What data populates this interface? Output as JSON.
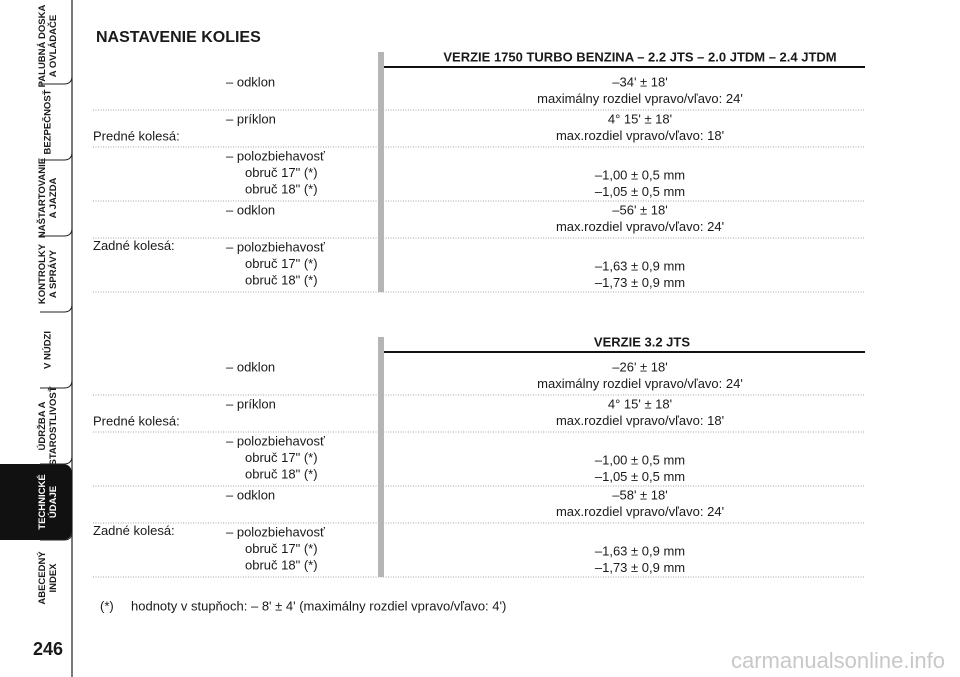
{
  "sidebar": {
    "tabs": [
      {
        "lines": [
          "PALUBNÁ DOSKA",
          "A OVLÁDAČE"
        ]
      },
      {
        "lines": [
          "BEZPEČNOSŤ"
        ]
      },
      {
        "lines": [
          "NAŠTARTOVANIE",
          "A JAZDA"
        ]
      },
      {
        "lines": [
          "KONTROLKY",
          "A SPRÁVY"
        ]
      },
      {
        "lines": [
          "V NÚDZI"
        ]
      },
      {
        "lines": [
          "ÚDRŽBA A",
          "STAROSTLIVOSŤ"
        ]
      },
      {
        "lines": [
          "TECHNICKÉ",
          "ÚDAJE"
        ]
      },
      {
        "lines": [
          "ABECEDNÝ",
          "INDEX"
        ]
      }
    ],
    "page_number": "246"
  },
  "title": "NASTAVENIE KOLIES",
  "sections": [
    {
      "header": "VERZIE 1750 TURBO BENZINA – 2.2 JTS – 2.0 JTDM – 2.4 JTDM",
      "groups": [
        {
          "label": "Predné kolesá:",
          "items": [
            {
              "params": [
                "– odklon"
              ],
              "values": [
                "–34' ± 18'",
                "maximálny rozdiel vpravo/vľavo: 24'"
              ]
            },
            {
              "params": [
                "– príklon"
              ],
              "values": [
                "4° 15' ± 18'",
                "max.rozdiel vpravo/vľavo: 18'"
              ]
            },
            {
              "params": [
                "– polozbiehavosť",
                "obruč 17\" (*)",
                "obruč 18\" (*)"
              ],
              "values": [
                "–1,00 ± 0,5 mm",
                "–1,05 ± 0,5 mm"
              ]
            }
          ]
        },
        {
          "label": "Zadné kolesá:",
          "items": [
            {
              "params": [
                "– odklon"
              ],
              "values": [
                "–56' ± 18'",
                "max.rozdiel vpravo/vľavo: 24'"
              ]
            },
            {
              "params": [
                "– polozbiehavosť",
                "obruč 17\" (*)",
                "obruč 18\" (*)"
              ],
              "values": [
                "–1,63 ± 0,9 mm",
                "–1,73 ± 0,9 mm"
              ]
            }
          ]
        }
      ]
    },
    {
      "header": "VERZIE 3.2 JTS",
      "groups": [
        {
          "label": "Predné kolesá:",
          "items": [
            {
              "params": [
                "– odklon"
              ],
              "values": [
                "–26' ± 18'",
                "maximálny rozdiel vpravo/vľavo: 24'"
              ]
            },
            {
              "params": [
                "– príklon"
              ],
              "values": [
                "4° 15' ± 18'",
                "max.rozdiel vpravo/vľavo: 18'"
              ]
            },
            {
              "params": [
                "– polozbiehavosť",
                "obruč 17\" (*)",
                "obruč 18\" (*)"
              ],
              "values": [
                "–1,00 ± 0,5 mm",
                "–1,05 ± 0,5 mm"
              ]
            }
          ]
        },
        {
          "label": "Zadné kolesá:",
          "items": [
            {
              "params": [
                "– odklon"
              ],
              "values": [
                "–58' ± 18'",
                "max.rozdiel vpravo/vľavo: 24'"
              ]
            },
            {
              "params": [
                "– polozbiehavosť",
                "obruč 17\" (*)",
                "obruč 18\" (*)"
              ],
              "values": [
                "–1,63 ± 0,9 mm",
                "–1,73 ± 0,9 mm"
              ]
            }
          ]
        }
      ]
    }
  ],
  "footnote": {
    "mark": "(*)",
    "text": "hodnoty v stupňoch: – 8' ± 4' (maximálny rozdiel vpravo/vľavo: 4')"
  },
  "watermark": "carmanualsonline.info"
}
